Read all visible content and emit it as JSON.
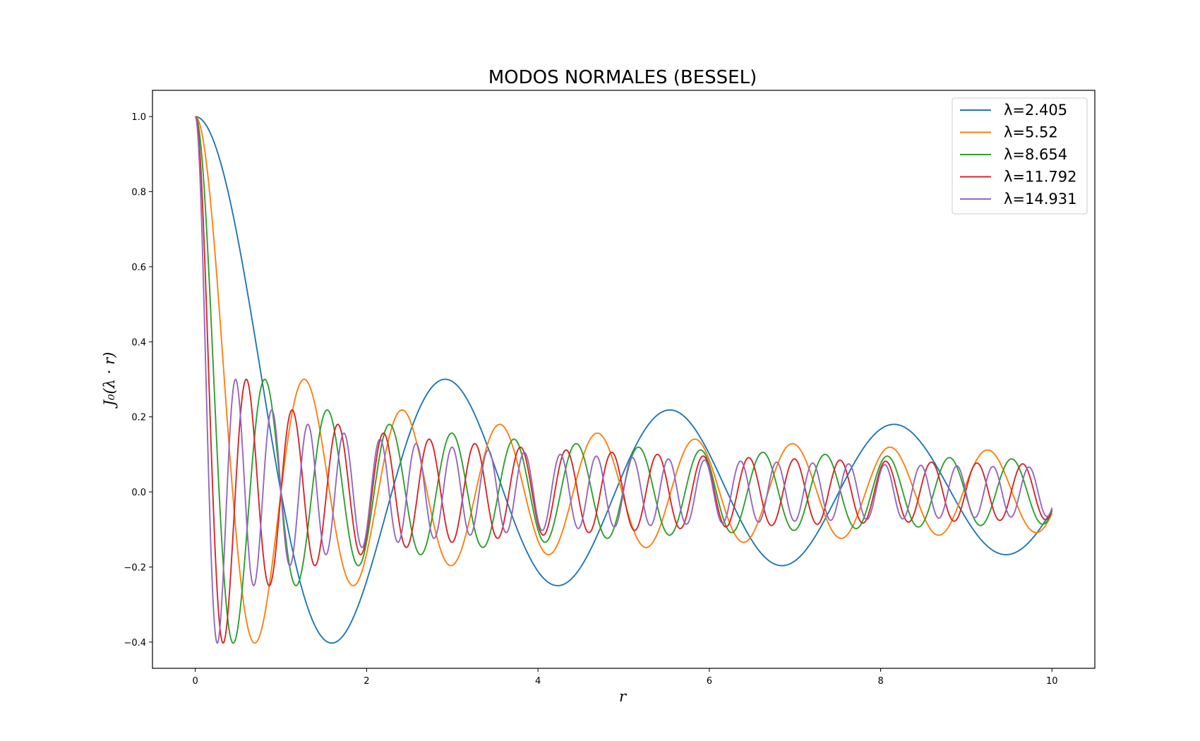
{
  "chart_data": {
    "type": "line",
    "title": "MODOS NORMALES (BESSEL)",
    "xlabel": "r",
    "ylabel": "J₀(λ · r)",
    "xlim": [
      -0.5,
      10.5
    ],
    "ylim": [
      -0.47,
      1.07
    ],
    "x_ticks": [
      0,
      2,
      4,
      6,
      8,
      10
    ],
    "x_tick_labels": [
      "0",
      "2",
      "4",
      "6",
      "8",
      "10"
    ],
    "y_ticks": [
      -0.4,
      -0.2,
      0.0,
      0.2,
      0.4,
      0.6,
      0.8,
      1.0
    ],
    "y_tick_labels": [
      "−0.4",
      "−0.2",
      "0.0",
      "0.2",
      "0.4",
      "0.6",
      "0.8",
      "1.0"
    ],
    "function": "J0(lambda*r)",
    "x_range": [
      0,
      10
    ],
    "grid": false,
    "legend_position": "top-right",
    "series": [
      {
        "name": "λ=2.405",
        "lambda": 2.405,
        "color": "#1f77b4"
      },
      {
        "name": "λ=5.52",
        "lambda": 5.52,
        "color": "#ff7f0e"
      },
      {
        "name": "λ=8.654",
        "lambda": 8.654,
        "color": "#2ca02c"
      },
      {
        "name": "λ=11.792",
        "lambda": 11.792,
        "color": "#d62728"
      },
      {
        "name": "λ=14.931",
        "lambda": 14.931,
        "color": "#9467bd"
      }
    ]
  }
}
